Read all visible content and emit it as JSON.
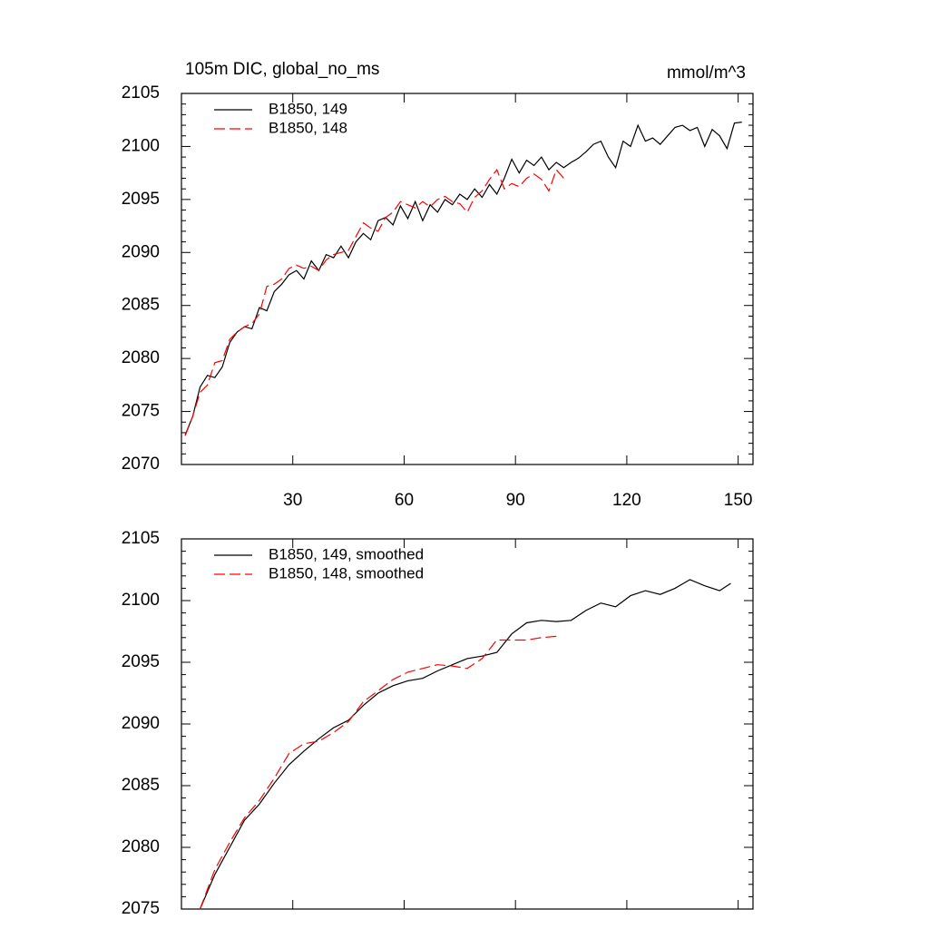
{
  "chart_data": [
    {
      "type": "line",
      "title": "105m DIC, global_no_ms",
      "units": "mmol/m^3",
      "xlim": [
        0,
        154
      ],
      "xticks": [
        30,
        60,
        90,
        120,
        150
      ],
      "xtick_labels": true,
      "ylim": [
        2070,
        2105
      ],
      "yticks": [
        2070,
        2075,
        2080,
        2085,
        2090,
        2095,
        2100,
        2105
      ],
      "legend": "top-left",
      "series": [
        {
          "name": "B1850, 149",
          "color": "#000000",
          "dash": false,
          "x": [
            1,
            3,
            5,
            7,
            9,
            11,
            13,
            15,
            17,
            19,
            21,
            23,
            25,
            27,
            29,
            31,
            33,
            35,
            37,
            39,
            41,
            43,
            45,
            47,
            49,
            51,
            53,
            55,
            57,
            59,
            61,
            63,
            65,
            67,
            69,
            71,
            73,
            75,
            77,
            79,
            81,
            83,
            85,
            87,
            89,
            91,
            93,
            95,
            97,
            99,
            101,
            103,
            105,
            107,
            109,
            111,
            113,
            115,
            117,
            119,
            121,
            123,
            125,
            127,
            129,
            131,
            133,
            135,
            137,
            139,
            141,
            143,
            145,
            147,
            149,
            151
          ],
          "values": [
            2072.8,
            2074.5,
            2077.3,
            2078.4,
            2078.2,
            2079.2,
            2081.5,
            2082.5,
            2083.0,
            2082.8,
            2084.8,
            2084.5,
            2086.3,
            2087.0,
            2087.9,
            2088.3,
            2087.5,
            2089.2,
            2088.3,
            2089.8,
            2089.5,
            2090.6,
            2089.5,
            2091.0,
            2091.8,
            2091.2,
            2093.0,
            2093.3,
            2092.6,
            2094.4,
            2093.2,
            2094.8,
            2093.0,
            2094.5,
            2093.8,
            2095.0,
            2094.5,
            2095.5,
            2095.0,
            2096.0,
            2095.2,
            2096.4,
            2095.5,
            2097.0,
            2098.8,
            2097.5,
            2098.7,
            2098.2,
            2099.0,
            2097.8,
            2098.5,
            2098.0,
            2098.5,
            2098.9,
            2099.5,
            2100.2,
            2100.5,
            2099.0,
            2098.0,
            2100.5,
            2100.0,
            2102.0,
            2100.5,
            2100.8,
            2100.2,
            2101.0,
            2101.8,
            2102.0,
            2101.5,
            2101.8,
            2100.0,
            2101.6,
            2101.0,
            2099.8,
            2102.2,
            2102.3
          ]
        },
        {
          "name": "B1850, 148",
          "color": "#ff0000",
          "dash": true,
          "x": [
            1,
            3,
            5,
            7,
            9,
            11,
            13,
            15,
            17,
            19,
            21,
            23,
            25,
            27,
            29,
            31,
            33,
            35,
            37,
            39,
            41,
            43,
            45,
            47,
            49,
            51,
            53,
            55,
            57,
            59,
            61,
            63,
            65,
            67,
            69,
            71,
            73,
            75,
            77,
            79,
            81,
            83,
            85,
            87,
            89,
            91,
            93,
            95,
            97,
            99,
            101,
            103
          ],
          "values": [
            2072.7,
            2074.5,
            2076.8,
            2077.5,
            2079.6,
            2079.8,
            2081.8,
            2082.5,
            2083.0,
            2083.3,
            2084.2,
            2086.8,
            2087.0,
            2087.5,
            2088.5,
            2088.8,
            2088.5,
            2088.7,
            2088.3,
            2089.3,
            2089.8,
            2090.0,
            2090.2,
            2091.5,
            2092.8,
            2092.3,
            2092.0,
            2093.3,
            2093.8,
            2094.8,
            2094.5,
            2094.2,
            2094.8,
            2094.3,
            2095.0,
            2095.3,
            2094.8,
            2094.6,
            2093.8,
            2095.2,
            2095.8,
            2096.9,
            2097.8,
            2096.0,
            2096.5,
            2096.2,
            2097.0,
            2097.4,
            2096.9,
            2095.8,
            2097.8,
            2097.0
          ]
        }
      ]
    },
    {
      "type": "line",
      "xlim": [
        0,
        154
      ],
      "xticks": [
        30,
        60,
        90,
        120,
        150
      ],
      "xtick_labels": false,
      "ylim": [
        2075,
        2105
      ],
      "yticks": [
        2075,
        2080,
        2085,
        2090,
        2095,
        2100,
        2105
      ],
      "legend": "top-left",
      "series": [
        {
          "name": "B1850, 149, smoothed",
          "color": "#000000",
          "dash": false,
          "x": [
            5,
            9,
            13,
            17,
            21,
            25,
            29,
            33,
            37,
            41,
            45,
            49,
            53,
            57,
            61,
            65,
            69,
            73,
            77,
            81,
            85,
            89,
            93,
            97,
            101,
            105,
            109,
            113,
            117,
            121,
            125,
            129,
            133,
            137,
            141,
            145,
            148
          ],
          "values": [
            2075.0,
            2077.8,
            2080.0,
            2082.2,
            2083.5,
            2085.2,
            2086.7,
            2087.8,
            2088.8,
            2089.7,
            2090.3,
            2091.5,
            2092.5,
            2093.1,
            2093.5,
            2093.7,
            2094.3,
            2094.8,
            2095.3,
            2095.5,
            2095.8,
            2097.3,
            2098.2,
            2098.4,
            2098.3,
            2098.4,
            2099.2,
            2099.8,
            2099.5,
            2100.4,
            2100.8,
            2100.5,
            2101.0,
            2101.7,
            2101.2,
            2100.8,
            2101.4
          ]
        },
        {
          "name": "B1850, 148, smoothed",
          "color": "#ff0000",
          "dash": true,
          "x": [
            5,
            9,
            13,
            17,
            21,
            25,
            29,
            33,
            37,
            41,
            45,
            49,
            53,
            57,
            61,
            65,
            69,
            73,
            77,
            81,
            85,
            89,
            93,
            97,
            101
          ],
          "values": [
            2075.0,
            2078.2,
            2080.4,
            2082.4,
            2083.8,
            2085.6,
            2087.6,
            2088.4,
            2088.6,
            2089.3,
            2090.2,
            2091.8,
            2092.7,
            2093.6,
            2094.2,
            2094.5,
            2094.8,
            2094.7,
            2094.5,
            2095.3,
            2096.8,
            2096.8,
            2096.8,
            2097.0,
            2097.1
          ]
        }
      ]
    }
  ]
}
